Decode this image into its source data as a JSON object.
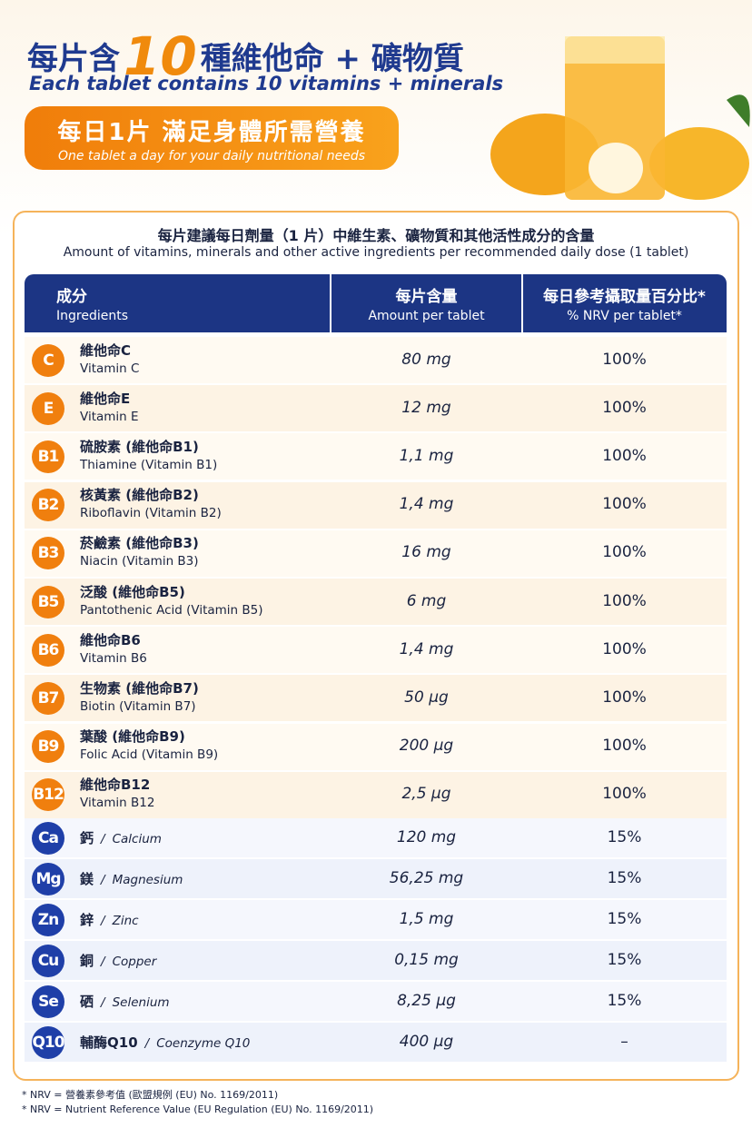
{
  "header": {
    "title_part1": "每片含",
    "title_number": "10",
    "title_part2": "種維他命 + 礦物質",
    "subtitle": "Each tablet contains 10 vitamins + minerals",
    "badge_zh": "每日1片 滿足身體所需營養",
    "badge_en": "One tablet a day for your daily nutritional needs"
  },
  "table": {
    "title_zh": "每片建議每日劑量（1 片）中維生素、礦物質和其他活性成分的含量",
    "title_en": "Amount of vitamins, minerals and other active ingredients per recommended daily dose (1 tablet)",
    "columns": [
      {
        "zh": "成分",
        "en": "Ingredients"
      },
      {
        "zh": "每片含量",
        "en": "Amount per tablet"
      },
      {
        "zh": "每日參考攝取量百分比*",
        "en": "% NRV per tablet*"
      }
    ],
    "separator": "/",
    "vitamins": [
      {
        "icon": "C",
        "name_zh": "維他命C",
        "name_en": "Vitamin C",
        "amount": "80 mg",
        "nrv": "100%"
      },
      {
        "icon": "E",
        "name_zh": "維他命E",
        "name_en": "Vitamin E",
        "amount": "12 mg",
        "nrv": "100%"
      },
      {
        "icon": "B1",
        "name_zh": "硫胺素 (維他命B1)",
        "name_en": "Thiamine (Vitamin B1)",
        "amount": "1,1 mg",
        "nrv": "100%"
      },
      {
        "icon": "B2",
        "name_zh": "核黃素 (維他命B2)",
        "name_en": "Riboflavin (Vitamin B2)",
        "amount": "1,4 mg",
        "nrv": "100%"
      },
      {
        "icon": "B3",
        "name_zh": "菸鹼素 (維他命B3)",
        "name_en": "Niacin (Vitamin B3)",
        "amount": "16 mg",
        "nrv": "100%"
      },
      {
        "icon": "B5",
        "name_zh": "泛酸 (維他命B5)",
        "name_en": "Pantothenic Acid (Vitamin B5)",
        "amount": "6 mg",
        "nrv": "100%"
      },
      {
        "icon": "B6",
        "name_zh": "維他命B6",
        "name_en": "Vitamin B6",
        "amount": "1,4 mg",
        "nrv": "100%"
      },
      {
        "icon": "B7",
        "name_zh": "生物素 (維他命B7)",
        "name_en": "Biotin (Vitamin B7)",
        "amount": "50 µg",
        "nrv": "100%"
      },
      {
        "icon": "B9",
        "name_zh": "葉酸 (維他命B9)",
        "name_en": "Folic Acid (Vitamin B9)",
        "amount": "200 µg",
        "nrv": "100%"
      },
      {
        "icon": "B12",
        "name_zh": "維他命B12",
        "name_en": "Vitamin B12",
        "amount": "2,5 µg",
        "nrv": "100%"
      }
    ],
    "minerals": [
      {
        "icon": "Ca",
        "name_zh": "鈣",
        "name_en": "Calcium",
        "amount": "120 mg",
        "nrv": "15%"
      },
      {
        "icon": "Mg",
        "name_zh": "鎂",
        "name_en": "Magnesium",
        "amount": "56,25 mg",
        "nrv": "15%"
      },
      {
        "icon": "Zn",
        "name_zh": "鋅",
        "name_en": "Zinc",
        "amount": "1,5 mg",
        "nrv": "15%"
      },
      {
        "icon": "Cu",
        "name_zh": "銅",
        "name_en": "Copper",
        "amount": "0,15 mg",
        "nrv": "15%"
      },
      {
        "icon": "Se",
        "name_zh": "硒",
        "name_en": "Selenium",
        "amount": "8,25 µg",
        "nrv": "15%"
      },
      {
        "icon": "Q10",
        "name_zh": "輔酶Q10",
        "name_en": "Coenzyme Q10",
        "amount": "400 µg",
        "nrv": "–"
      }
    ]
  },
  "footnotes": [
    "* NRV = 營養素參考值 (歐盟規例 (EU) No. 1169/2011)",
    "* NRV = Nutrient Reference Value (EU Regulation (EU) No. 1169/2011)"
  ]
}
